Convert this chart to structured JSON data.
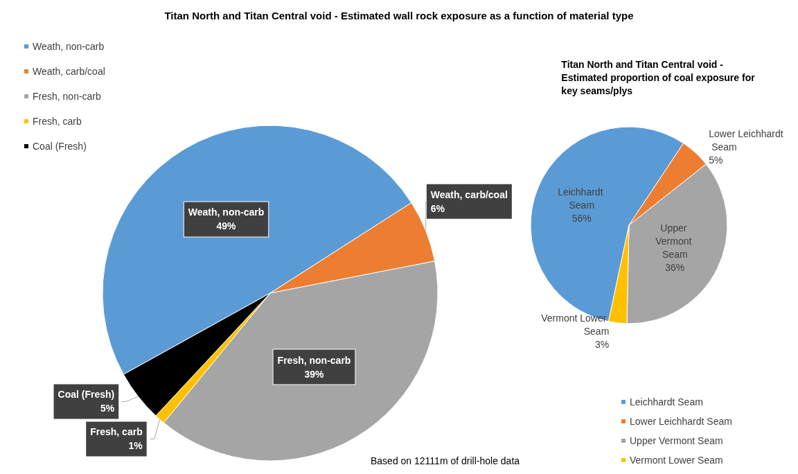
{
  "chart_data": [
    {
      "type": "pie",
      "title": "Titan North and Titan Central void - Estimated wall rock exposure as a function of material type",
      "categories": [
        "Weath, non-carb",
        "Weath, carb/coal",
        "Fresh, non-carb",
        "Fresh, carb",
        "Coal (Fresh)"
      ],
      "values": [
        49,
        6,
        39,
        1,
        5
      ],
      "value_labels": [
        "49%",
        "6%",
        "39%",
        "1%",
        "5%"
      ],
      "colors": [
        "#5b9bd5",
        "#ed7d31",
        "#a5a5a5",
        "#ffc000",
        "#000000"
      ],
      "data_labels": true,
      "legend": "top left",
      "annotations": [
        "Based on 12111m of drill-hole data"
      ]
    },
    {
      "type": "pie",
      "title": "Titan North and Titan Central void -\nEstimated proportion of coal exposure for\nkey seams/plys",
      "categories": [
        "Leichhardt Seam",
        "Lower Leichhardt Seam",
        "Upper Vermont Seam",
        "Vermont Lower Seam"
      ],
      "values": [
        56,
        5,
        36,
        3
      ],
      "value_labels": [
        "56%",
        "5%",
        "36%",
        "3%"
      ],
      "colors": [
        "#5b9bd5",
        "#ed7d31",
        "#a5a5a5",
        "#ffc000"
      ],
      "data_labels": true,
      "legend": "bottom right"
    }
  ]
}
